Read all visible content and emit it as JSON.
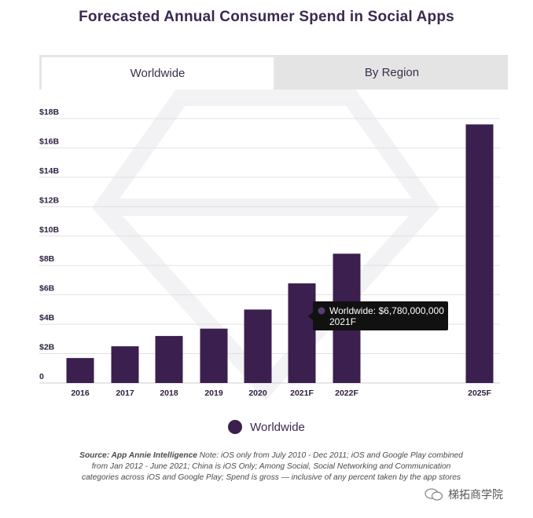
{
  "title": "Forecasted Annual Consumer Spend in Social Apps",
  "tabs": [
    {
      "label": "Worldwide",
      "active": true
    },
    {
      "label": "By Region",
      "active": false
    }
  ],
  "chart_data": {
    "type": "bar",
    "categories": [
      "2016",
      "2017",
      "2018",
      "2019",
      "2020",
      "2021F",
      "2022F",
      "2025F"
    ],
    "values": [
      1.7,
      2.5,
      3.2,
      3.7,
      5.0,
      6.78,
      8.8,
      17.6
    ],
    "ylim": [
      0,
      18
    ],
    "yticks": [
      {
        "value": 0,
        "label": "0"
      },
      {
        "value": 2,
        "label": "$2B"
      },
      {
        "value": 4,
        "label": "$4B"
      },
      {
        "value": 6,
        "label": "$6B"
      },
      {
        "value": 8,
        "label": "$8B"
      },
      {
        "value": 10,
        "label": "$10B"
      },
      {
        "value": 12,
        "label": "$12B"
      },
      {
        "value": 14,
        "label": "$14B"
      },
      {
        "value": 16,
        "label": "$16B"
      },
      {
        "value": 18,
        "label": "$18B"
      }
    ],
    "series_name": "Worldwide",
    "bar_color": "#3b1f4e",
    "tooltip": {
      "index": 5,
      "line1": "Worldwide: $6,780,000,000",
      "line2": "2021F"
    }
  },
  "legend": {
    "label": "Worldwide",
    "color": "#3b1f4e"
  },
  "source": {
    "label": "Source: App Annie Intelligence",
    "text": " Note: iOS only from July 2010 - Dec 2011; iOS and Google Play combined from Jan 2012 - June 2021; China is iOS Only; Among Social, Social Networking and Communication categories across iOS and Google Play; Spend is gross — inclusive of any percent taken by the app stores"
  },
  "watermark": {
    "text": "梯拓商学院"
  }
}
